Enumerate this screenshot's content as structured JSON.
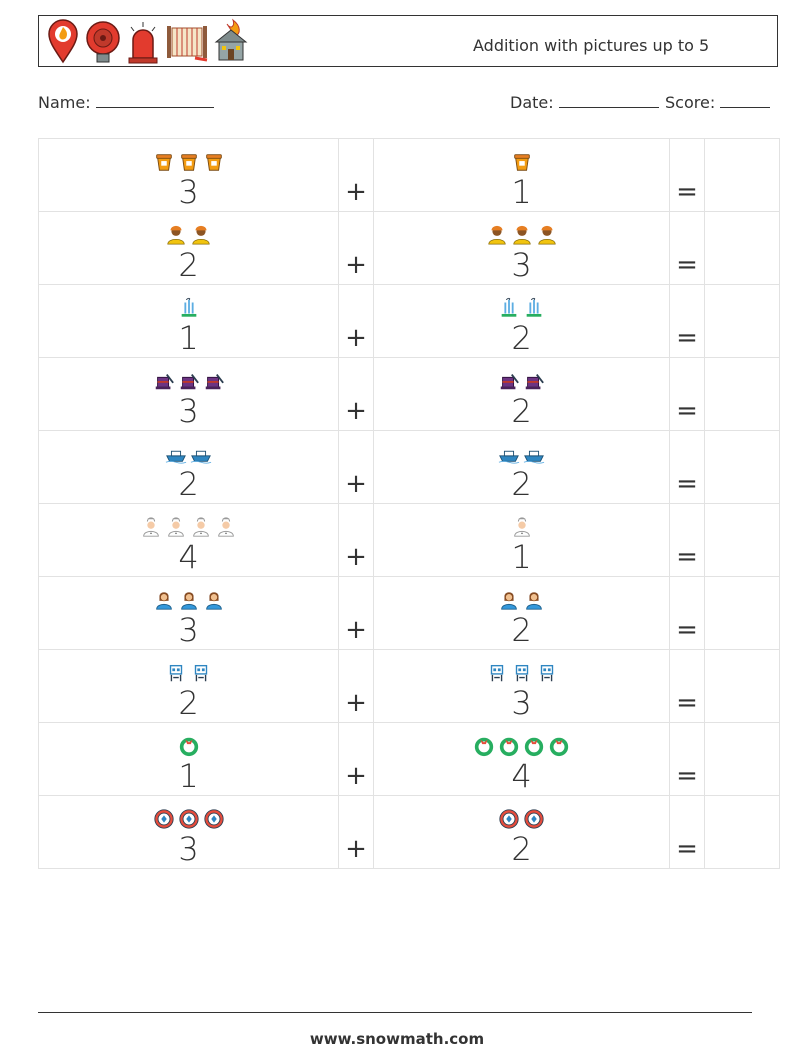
{
  "header": {
    "icons": [
      "fire-location-pin-icon",
      "fire-alarm-bell-icon",
      "siren-light-icon",
      "fire-hose-icon",
      "burning-house-icon"
    ],
    "title": "Addition with pictures up to 5"
  },
  "form": {
    "name_label": "Name:",
    "date_label": "Date:",
    "score_label": "Score:"
  },
  "operators": {
    "plus": "+",
    "equals": "="
  },
  "problems": [
    {
      "a": 3,
      "a_label": "3",
      "a_icon": "bucket-icon",
      "b": 1,
      "b_label": "1",
      "b_icon": "bucket-icon"
    },
    {
      "a": 2,
      "a_label": "2",
      "a_icon": "firefighter-icon",
      "b": 3,
      "b_label": "3",
      "b_icon": "firefighter-icon"
    },
    {
      "a": 1,
      "a_label": "1",
      "a_icon": "water-spray-icon",
      "b": 2,
      "b_label": "2",
      "b_icon": "water-spray-icon"
    },
    {
      "a": 3,
      "a_label": "3",
      "a_icon": "magic-hat-icon",
      "b": 2,
      "b_label": "2",
      "b_icon": "magic-hat-icon"
    },
    {
      "a": 2,
      "a_label": "2",
      "a_icon": "boat-icon",
      "b": 2,
      "b_label": "2",
      "b_icon": "boat-icon"
    },
    {
      "a": 4,
      "a_label": "4",
      "a_icon": "chef-icon",
      "b": 1,
      "b_label": "1",
      "b_icon": "chef-icon"
    },
    {
      "a": 3,
      "a_label": "3",
      "a_icon": "nurse-icon",
      "b": 2,
      "b_label": "2",
      "b_icon": "nurse-icon"
    },
    {
      "a": 2,
      "a_label": "2",
      "a_icon": "robot-icon",
      "b": 3,
      "b_label": "3",
      "b_icon": "robot-icon"
    },
    {
      "a": 1,
      "a_label": "1",
      "a_icon": "wreath-icon",
      "b": 4,
      "b_label": "4",
      "b_icon": "wreath-icon"
    },
    {
      "a": 3,
      "a_label": "3",
      "a_icon": "poker-chip-icon",
      "b": 2,
      "b_label": "2",
      "b_icon": "poker-chip-icon"
    }
  ],
  "footer": {
    "website": "www.snowmath.com"
  }
}
